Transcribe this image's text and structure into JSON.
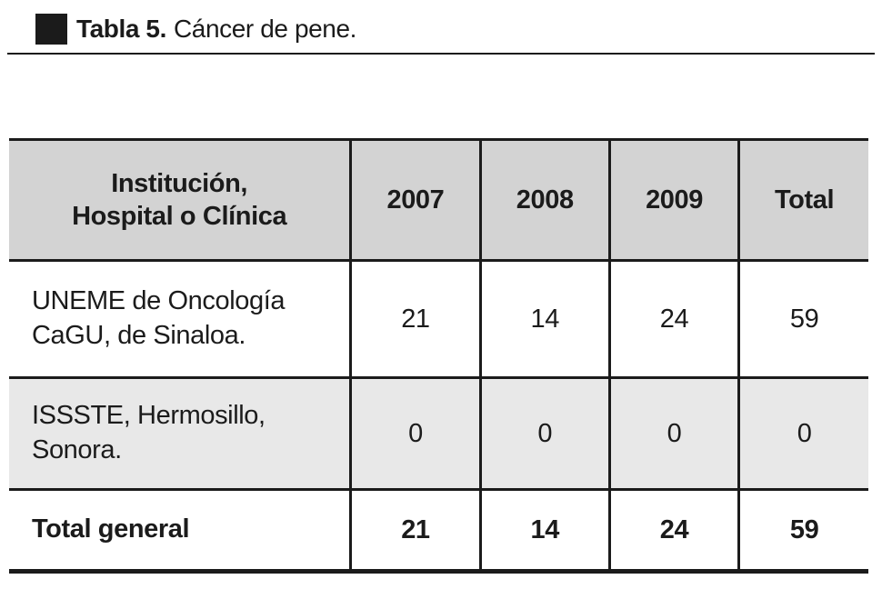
{
  "caption": {
    "bullet_icon": "black-square",
    "number": "Tabla 5.",
    "text": "Cáncer de pene."
  },
  "table": {
    "header": [
      "Institución,\nHospital o Clínica",
      "2007",
      "2008",
      "2009",
      "Total"
    ],
    "rows": [
      [
        "UNEME de Oncología\nCaGU, de Sinaloa.",
        "21",
        "14",
        "24",
        "59"
      ],
      [
        "ISSSTE, Hermosillo,\nSonora.",
        "0",
        "0",
        "0",
        "0"
      ],
      [
        "Total general",
        "21",
        "14",
        "24",
        "59"
      ]
    ]
  },
  "colors": {
    "ink": "#1b1b1b",
    "header_bg": "#d3d3d3",
    "alt_row_bg": "#e8e8e8",
    "paper": "#ffffff"
  }
}
